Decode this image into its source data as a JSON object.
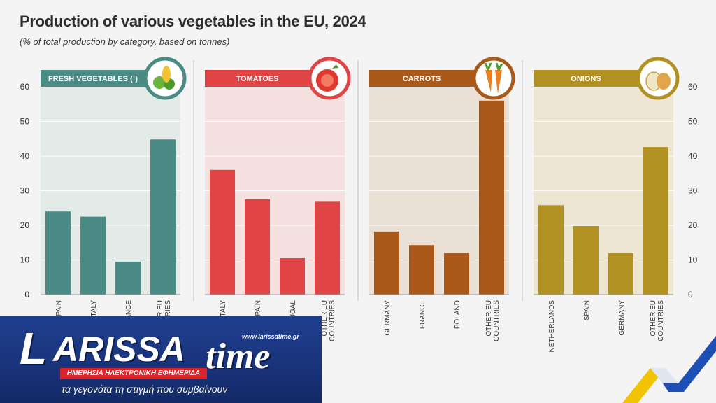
{
  "title": "Production of various vegetables in the EU, 2024",
  "subtitle": "(% of total production by category, based on tonnes)",
  "chart_data": {
    "type": "bar",
    "ylim": [
      0,
      60
    ],
    "yticks": [
      0,
      10,
      20,
      30,
      40,
      50,
      60
    ],
    "panels": [
      {
        "title": "FRESH VEGETABLES (¹)",
        "icon": "vegetables-icon",
        "color": "#4a8b86",
        "bg": "#e2ebe8",
        "categories": [
          "SPAIN",
          "ITALY",
          "FRANCE",
          "OTHER EU COUNTRIES"
        ],
        "values": [
          24,
          22.5,
          9.5,
          44.8
        ]
      },
      {
        "title": "TOMATOES",
        "icon": "tomato-icon",
        "color": "#e04444",
        "bg": "#f6e1e1",
        "categories": [
          "ITALY",
          "SPAIN",
          "PORTUGAL",
          "OTHER EU COUNTRIES"
        ],
        "values": [
          36,
          27.5,
          10.5,
          26.8
        ]
      },
      {
        "title": "CARROTS",
        "icon": "carrot-icon",
        "color": "#a9591a",
        "bg": "#ebe0d6",
        "categories": [
          "GERMANY",
          "FRANCE",
          "POLAND",
          "OTHER EU COUNTRIES"
        ],
        "values": [
          18.2,
          14.3,
          12,
          56
        ]
      },
      {
        "title": "ONIONS",
        "icon": "onion-icon",
        "color": "#b29123",
        "bg": "#ede6d2",
        "categories": [
          "NETHERLANDS",
          "SPAIN",
          "GERMANY",
          "OTHER EU COUNTRIES"
        ],
        "values": [
          25.8,
          19.8,
          12,
          42.6
        ]
      }
    ]
  },
  "logo": {
    "brand_l": "L",
    "brand_rest": "ARISSA",
    "brand_time": "time",
    "url": "www.larissatime.gr",
    "tagline": "ΗΜΕΡΗΣΙΑ ΗΛΕΚΤΡΟΝΙΚΗ ΕΦΗΜΕΡΙΔΑ",
    "slogan": "τα γεγονότα τη στιγμή που συμβαίνουν"
  }
}
